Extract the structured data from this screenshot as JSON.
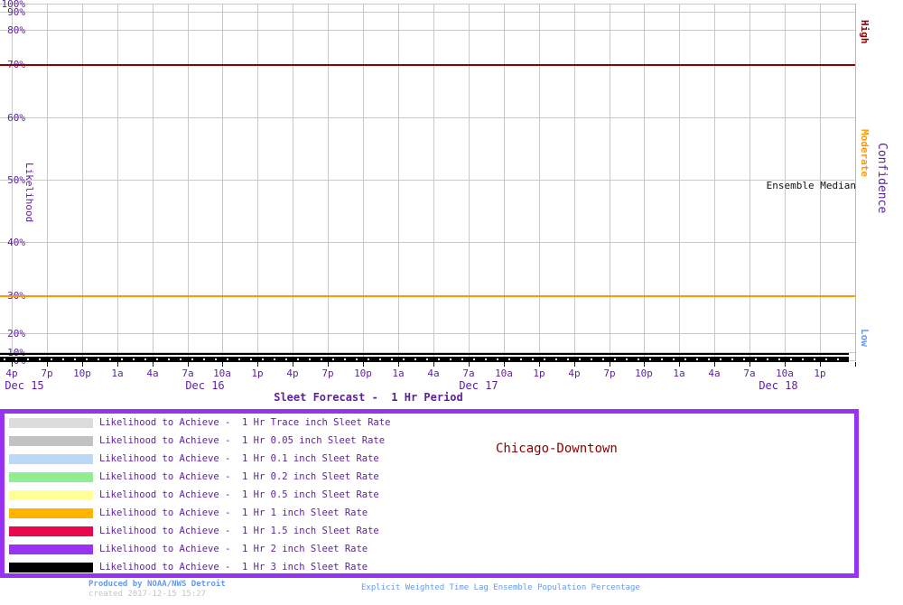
{
  "chart_data": {
    "type": "line",
    "title": "Sleet Forecast -  1 Hr Period",
    "ylabel": "Likelihood",
    "y2label": "Confidence",
    "y_scale": "probability axis, nonlinear (probit-style), 0%-100%",
    "y_ticks": [
      "100%",
      "90%",
      "80%",
      "70%",
      "60%",
      "50%",
      "40%",
      "30%",
      "20%",
      "10%",
      "0%"
    ],
    "x_ticks": [
      "4p",
      "7p",
      "10p",
      "1a",
      "4a",
      "7a",
      "10a",
      "1p",
      "4p",
      "7p",
      "10p",
      "1a",
      "4a",
      "7a",
      "10a",
      "1p",
      "4p",
      "7p",
      "10p",
      "1a",
      "4a",
      "7a",
      "10a",
      "1p"
    ],
    "x_dates": [
      "Dec 15",
      "Dec 16",
      "Dec 17",
      "Dec 18"
    ],
    "x_range": "Dec 15 4p through Dec 18 4p, hourly points every 1 hr, tick labels every 3 hr",
    "grid": true,
    "reference_lines": [
      {
        "name": "high-confidence-threshold",
        "level": "70%",
        "color": "#8b0000"
      },
      {
        "name": "moderate-confidence-threshold",
        "level": "30%",
        "color": "#ff9900"
      }
    ],
    "confidence_labels": {
      "high": "High",
      "moderate": "Moderate",
      "low": "Low",
      "axis": "Confidence"
    },
    "median_label": "Ensemble Median",
    "median_series": {
      "name": "Ensemble Median",
      "color": "#000000",
      "marker_color": "#ffffff",
      "all_values_percent": 0
    },
    "series": [
      {
        "name": "Likelihood to Achieve -  1 Hr Trace inch Sleet Rate",
        "color": "#dcdcdc",
        "all_values_percent": 0
      },
      {
        "name": "Likelihood to Achieve -  1 Hr 0.05 inch Sleet Rate",
        "color": "#c2c2c2",
        "all_values_percent": 0
      },
      {
        "name": "Likelihood to Achieve -  1 Hr 0.1 inch Sleet Rate",
        "color": "#bcd8f8",
        "all_values_percent": 0
      },
      {
        "name": "Likelihood to Achieve -  1 Hr 0.2 inch Sleet Rate",
        "color": "#90ee90",
        "all_values_percent": 0
      },
      {
        "name": "Likelihood to Achieve -  1 Hr 0.5 inch Sleet Rate",
        "color": "#ffff96",
        "all_values_percent": 0
      },
      {
        "name": "Likelihood to Achieve -  1 Hr 1 inch Sleet Rate",
        "color": "#ffb400",
        "all_values_percent": 0
      },
      {
        "name": "Likelihood to Achieve -  1 Hr 1.5 inch Sleet Rate",
        "color": "#e8084e",
        "all_values_percent": 0
      },
      {
        "name": "Likelihood to Achieve -  1 Hr 2 inch Sleet Rate",
        "color": "#9933f3",
        "all_values_percent": 0
      },
      {
        "name": "Likelihood to Achieve -  1 Hr 3 inch Sleet Rate",
        "color": "#000000",
        "all_values_percent": 0
      }
    ]
  },
  "legend": {
    "border_color": "#9933f3",
    "items": [
      {
        "color": "#dcdcdc",
        "label": "Likelihood to Achieve -  1 Hr Trace inch Sleet Rate"
      },
      {
        "color": "#c2c2c2",
        "label": "Likelihood to Achieve -  1 Hr 0.05 inch Sleet Rate"
      },
      {
        "color": "#bcd8f8",
        "label": "Likelihood to Achieve -  1 Hr 0.1 inch Sleet Rate"
      },
      {
        "color": "#90ee90",
        "label": "Likelihood to Achieve -  1 Hr 0.2 inch Sleet Rate"
      },
      {
        "color": "#ffff96",
        "label": "Likelihood to Achieve -  1 Hr 0.5 inch Sleet Rate"
      },
      {
        "color": "#ffb400",
        "label": "Likelihood to Achieve -  1 Hr 1 inch Sleet Rate"
      },
      {
        "color": "#e8084e",
        "label": "Likelihood to Achieve -  1 Hr 1.5 inch Sleet Rate"
      },
      {
        "color": "#9933f3",
        "label": "Likelihood to Achieve -  1 Hr 2 inch Sleet Rate"
      },
      {
        "color": "#000000",
        "label": "Likelihood to Achieve -  1 Hr 3 inch Sleet Rate"
      }
    ],
    "location": "Chicago-Downtown"
  },
  "footer": {
    "produced_by": "Produced by NOAA/NWS Detroit",
    "created": "created 2017-12-15 15:27",
    "method": "Explicit Weighted Time Lag Ensemble Population Percentage"
  }
}
